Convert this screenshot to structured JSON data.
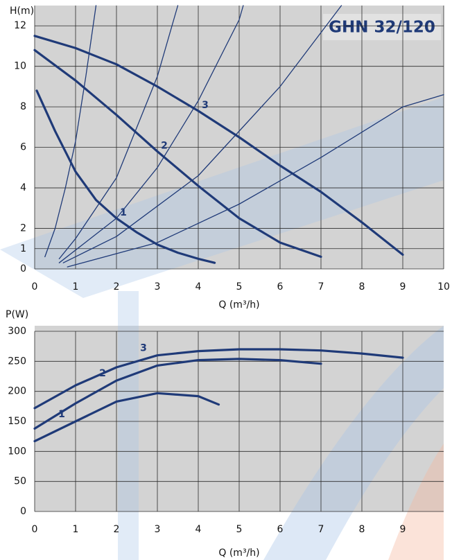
{
  "chart_data": [
    {
      "type": "line",
      "annotation": "GHN 32/120",
      "ylabel": "H(m)",
      "xlabel": "Q (m³/h)",
      "xlim": [
        0,
        10
      ],
      "xticks": [
        0,
        1,
        2,
        3,
        4,
        5,
        6,
        7,
        8,
        9,
        10
      ],
      "ylim": [
        0,
        13
      ],
      "yticks": [
        0,
        1,
        2,
        4,
        6,
        8,
        10,
        12
      ],
      "grid": true,
      "series": [
        {
          "name": "1",
          "color": "#1f3a78",
          "x": [
            0.05,
            0.5,
            1,
            1.5,
            2,
            2.5,
            3,
            3.5,
            4,
            4.4
          ],
          "values": [
            8.8,
            6.8,
            4.8,
            3.4,
            2.5,
            1.8,
            1.2,
            0.8,
            0.5,
            0.3
          ]
        },
        {
          "name": "2",
          "color": "#1f3a78",
          "x": [
            0,
            1,
            2,
            3,
            4,
            5,
            6,
            7
          ],
          "values": [
            10.8,
            9.3,
            7.6,
            5.8,
            4.1,
            2.5,
            1.3,
            0.6
          ]
        },
        {
          "name": "3",
          "color": "#1f3a78",
          "x": [
            0,
            1,
            2,
            3,
            4,
            5,
            6,
            7,
            8,
            9
          ],
          "values": [
            11.5,
            10.9,
            10.1,
            9.0,
            7.8,
            6.5,
            5.1,
            3.8,
            2.3,
            0.7
          ]
        },
        {
          "color": "#1f3a78",
          "x": [
            0.25,
            0.5,
            0.75,
            1,
            1.25,
            1.5
          ],
          "values": [
            0.6,
            2,
            4,
            6.3,
            9.5,
            13
          ]
        },
        {
          "color": "#1f3a78",
          "x": [
            0.6,
            1,
            2,
            3,
            3.5
          ],
          "values": [
            0.5,
            1.5,
            4.5,
            9.5,
            13
          ]
        },
        {
          "color": "#1f3a78",
          "x": [
            0.6,
            2,
            3,
            4,
            5,
            5.1
          ],
          "values": [
            0.3,
            2.5,
            5,
            8.3,
            12.3,
            13
          ]
        },
        {
          "color": "#1f3a78",
          "x": [
            0.7,
            2,
            4,
            6,
            7.5
          ],
          "values": [
            0.3,
            1.6,
            4.6,
            9,
            13
          ]
        },
        {
          "color": "#1f3a78",
          "x": [
            0.8,
            3,
            5,
            7,
            9,
            10
          ],
          "values": [
            0.1,
            1.3,
            3.2,
            5.5,
            8,
            8.6
          ]
        }
      ]
    },
    {
      "type": "line",
      "ylabel": "P(W)",
      "xlabel": "Q (m³/h)",
      "xlim": [
        0,
        10
      ],
      "xticks": [
        0,
        1,
        2,
        3,
        4,
        5,
        6,
        7,
        8,
        9
      ],
      "ylim": [
        0,
        300
      ],
      "yticks": [
        0,
        50,
        100,
        150,
        200,
        250,
        300
      ],
      "grid": true,
      "series": [
        {
          "name": "1",
          "color": "#1f3a78",
          "x": [
            0,
            1,
            2,
            3,
            4,
            4.5
          ],
          "values": [
            117,
            150,
            183,
            197,
            192,
            178
          ]
        },
        {
          "name": "2",
          "color": "#1f3a78",
          "x": [
            0,
            1,
            2,
            3,
            4,
            5,
            6,
            7
          ],
          "values": [
            138,
            180,
            218,
            243,
            252,
            254,
            252,
            246
          ]
        },
        {
          "name": "3",
          "color": "#1f3a78",
          "x": [
            0,
            1,
            2,
            3,
            4,
            5,
            6,
            7,
            8,
            9
          ],
          "values": [
            172,
            210,
            240,
            260,
            267,
            270,
            270,
            268,
            263,
            256
          ]
        }
      ]
    }
  ]
}
